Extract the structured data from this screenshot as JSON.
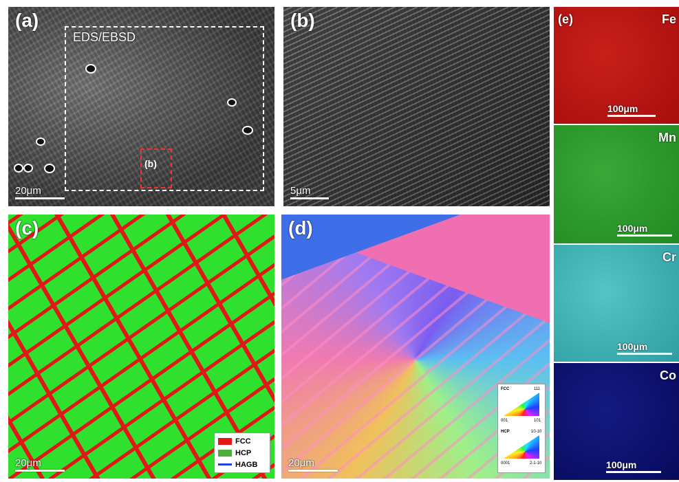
{
  "panels": {
    "a": {
      "label": "(a)",
      "box_label": "EDS/EBSD",
      "inset_label": "(b)",
      "scale": "20μm"
    },
    "b": {
      "label": "(b)",
      "scale": "5μm"
    },
    "c": {
      "label": "(c)",
      "scale": "20μm",
      "legend": [
        {
          "name": "FCC",
          "color": "#e01818"
        },
        {
          "name": "HCP",
          "color": "#4caf3a"
        },
        {
          "name": "HAGB",
          "color": "#2040e0"
        }
      ]
    },
    "d": {
      "label": "(d)",
      "scale": "20μm",
      "key": [
        {
          "phase": "FCC",
          "corners": [
            "001",
            "101",
            "111"
          ]
        },
        {
          "phase": "HCP",
          "corners": [
            "0001",
            "2-1-10",
            "10-10"
          ]
        }
      ]
    },
    "e": {
      "label": "(e)",
      "maps": [
        {
          "element": "Fe",
          "scale": "100μm",
          "color": "#c0100f"
        },
        {
          "element": "Mn",
          "scale": "100μm",
          "color": "#2e9e2e"
        },
        {
          "element": "Cr",
          "scale": "100μm",
          "color": "#3fb0b4"
        },
        {
          "element": "Co",
          "scale": "100μm",
          "color": "#0c0f70"
        }
      ]
    }
  }
}
